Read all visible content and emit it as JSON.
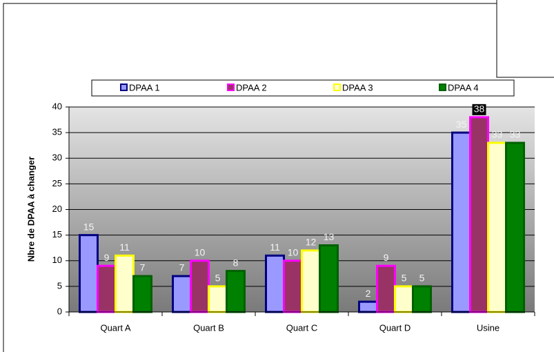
{
  "chart_data": {
    "type": "bar",
    "ylabel": "Nbre de DPAA à changer",
    "categories": [
      "Quart A",
      "Quart B",
      "Quart C",
      "Quart D",
      "Usine"
    ],
    "series": [
      {
        "name": "DPAA 1",
        "color": "#9999ff",
        "border": "#000080",
        "values": [
          15,
          7,
          11,
          2,
          35
        ]
      },
      {
        "name": "DPAA 2",
        "color": "#993366",
        "border": "#ff00ff",
        "values": [
          9,
          10,
          10,
          9,
          38
        ]
      },
      {
        "name": "DPAA 3",
        "color": "#ffffcc",
        "border": "#ffff00",
        "values": [
          11,
          5,
          12,
          5,
          33
        ]
      },
      {
        "name": "DPAA 4",
        "color": "#008000",
        "border": "#006000",
        "values": [
          7,
          8,
          13,
          5,
          33
        ]
      }
    ],
    "ylim": [
      0,
      40
    ],
    "yticks": [
      0,
      5,
      10,
      15,
      20,
      25,
      30,
      35,
      40
    ],
    "grid": true,
    "legend": "top"
  }
}
